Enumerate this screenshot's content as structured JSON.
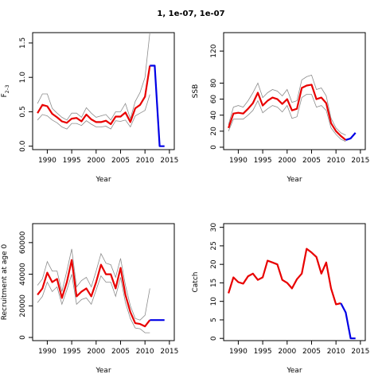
{
  "title": "1, 1e-07, 1e-07",
  "chart_data": [
    {
      "type": "line",
      "id": "f",
      "xlabel": "Year",
      "ylabel_main": "F",
      "ylabel_sub": "2–3",
      "xlim": [
        1987,
        2016
      ],
      "ylim": [
        -0.05,
        1.65
      ],
      "xticks": [
        1990,
        1995,
        2000,
        2005,
        2010,
        2015
      ],
      "yticks": [
        0.0,
        0.5,
        1.0,
        1.5
      ],
      "ytick_labels": [
        "0.0",
        "0.5",
        "1.0",
        "1.5"
      ],
      "x": [
        1988,
        1989,
        1990,
        1991,
        1992,
        1993,
        1994,
        1995,
        1996,
        1997,
        1998,
        1999,
        2000,
        2001,
        2002,
        2003,
        2004,
        2005,
        2006,
        2007,
        2008,
        2009,
        2010,
        2011
      ],
      "series": [
        {
          "role": "upper",
          "values": [
            0.62,
            0.76,
            0.76,
            0.55,
            0.48,
            0.42,
            0.38,
            0.48,
            0.48,
            0.42,
            0.56,
            0.48,
            0.42,
            0.44,
            0.46,
            0.38,
            0.5,
            0.5,
            0.62,
            0.4,
            0.65,
            0.78,
            1.0,
            1.65
          ]
        },
        {
          "role": "estimate",
          "values": [
            0.48,
            0.6,
            0.58,
            0.47,
            0.42,
            0.36,
            0.34,
            0.4,
            0.41,
            0.36,
            0.46,
            0.39,
            0.35,
            0.35,
            0.37,
            0.32,
            0.43,
            0.43,
            0.49,
            0.35,
            0.55,
            0.6,
            0.72,
            1.17
          ]
        },
        {
          "role": "lower",
          "values": [
            0.38,
            0.46,
            0.44,
            0.38,
            0.34,
            0.28,
            0.25,
            0.33,
            0.33,
            0.3,
            0.37,
            0.32,
            0.28,
            0.28,
            0.29,
            0.25,
            0.37,
            0.36,
            0.38,
            0.28,
            0.44,
            0.48,
            0.52,
            0.75
          ]
        },
        {
          "role": "projection",
          "x": [
            2011,
            2012,
            2013,
            2014
          ],
          "values": [
            1.17,
            1.17,
            0.0,
            0.0
          ]
        }
      ]
    },
    {
      "type": "line",
      "id": "ssb",
      "xlabel": "Year",
      "ylabel_main": "SSB",
      "xlim": [
        1987,
        2016
      ],
      "ylim": [
        -3,
        143
      ],
      "xticks": [
        1990,
        1995,
        2000,
        2005,
        2010,
        2015
      ],
      "yticks": [
        0,
        20,
        40,
        60,
        80,
        120
      ],
      "ytick_labels": [
        "0",
        "20",
        "40",
        "60",
        "80",
        "120"
      ],
      "x": [
        1988,
        1989,
        1990,
        1991,
        1992,
        1993,
        1994,
        1995,
        1996,
        1997,
        1998,
        1999,
        2000,
        2001,
        2002,
        2003,
        2004,
        2005,
        2006,
        2007,
        2008,
        2009,
        2010,
        2011,
        2012
      ],
      "series": [
        {
          "role": "upper",
          "values": [
            28,
            50,
            52,
            50,
            58,
            68,
            80,
            62,
            68,
            72,
            70,
            64,
            72,
            56,
            58,
            84,
            88,
            90,
            72,
            74,
            64,
            36,
            24,
            18,
            15
          ]
        },
        {
          "role": "estimate",
          "values": [
            24,
            42,
            43,
            42,
            48,
            55,
            68,
            52,
            58,
            62,
            60,
            54,
            60,
            46,
            48,
            74,
            77,
            78,
            60,
            62,
            55,
            30,
            20,
            14,
            9
          ]
        },
        {
          "role": "lower",
          "values": [
            20,
            35,
            35,
            35,
            40,
            46,
            58,
            43,
            48,
            52,
            50,
            44,
            52,
            36,
            38,
            62,
            66,
            66,
            50,
            52,
            46,
            24,
            16,
            10,
            7
          ]
        },
        {
          "role": "projection",
          "x": [
            2012,
            2013,
            2014
          ],
          "values": [
            9,
            11,
            18
          ]
        }
      ]
    },
    {
      "type": "line",
      "id": "recruitment",
      "xlabel": "Year",
      "ylabel_main": "Recruitment at age 0",
      "xlim": [
        1987,
        2016
      ],
      "ylim": [
        -2000,
        72000
      ],
      "xticks": [
        1990,
        1995,
        2000,
        2005,
        2010,
        2015
      ],
      "yticks": [
        0,
        20000,
        40000,
        60000
      ],
      "ytick_labels": [
        "0",
        "20000",
        "40000",
        "60000"
      ],
      "x": [
        1988,
        1989,
        1990,
        1991,
        1992,
        1993,
        1994,
        1995,
        1996,
        1997,
        1998,
        1999,
        2000,
        2001,
        2002,
        2003,
        2004,
        2005,
        2006,
        2007,
        2008,
        2009,
        2010,
        2011
      ],
      "series": [
        {
          "role": "upper",
          "values": [
            33000,
            37000,
            48000,
            42000,
            42000,
            29000,
            42000,
            56000,
            32000,
            36000,
            38000,
            32000,
            42000,
            53000,
            47000,
            46000,
            38000,
            50000,
            33000,
            20000,
            12000,
            11000,
            14000,
            31000
          ]
        },
        {
          "role": "estimate",
          "values": [
            27000,
            31000,
            41000,
            35000,
            37000,
            25000,
            35000,
            49000,
            26000,
            29000,
            31000,
            26000,
            35000,
            46000,
            40000,
            40000,
            31000,
            44000,
            27000,
            16000,
            9000,
            8500,
            7000,
            11000
          ]
        },
        {
          "role": "lower",
          "values": [
            22000,
            26000,
            35000,
            29000,
            32000,
            21000,
            30000,
            40000,
            21000,
            24000,
            25000,
            21000,
            30000,
            39000,
            35000,
            35000,
            26000,
            38000,
            22000,
            12000,
            6000,
            5500,
            3000,
            3000
          ]
        },
        {
          "role": "projection",
          "x": [
            2011,
            2012,
            2013,
            2014
          ],
          "values": [
            11000,
            11000,
            11000,
            11000
          ]
        }
      ]
    },
    {
      "type": "line",
      "id": "catch",
      "xlabel": "Year",
      "ylabel_main": "Catch",
      "xlim": [
        1987,
        2016
      ],
      "ylim": [
        -0.6,
        31
      ],
      "xticks": [
        1990,
        1995,
        2000,
        2005,
        2010,
        2015
      ],
      "yticks": [
        0,
        5,
        10,
        15,
        20,
        25,
        30
      ],
      "ytick_labels": [
        "0",
        "5",
        "10",
        "15",
        "20",
        "25",
        "30"
      ],
      "x": [
        1988,
        1989,
        1990,
        1991,
        1992,
        1993,
        1994,
        1995,
        1996,
        1997,
        1998,
        1999,
        2000,
        2001,
        2002,
        2003,
        2004,
        2005,
        2006,
        2007,
        2008,
        2009,
        2010,
        2011
      ],
      "series": [
        {
          "role": "estimate",
          "values": [
            12.2,
            16.5,
            15.2,
            14.8,
            16.8,
            17.5,
            15.8,
            16.5,
            21.0,
            20.5,
            20.0,
            15.8,
            15.0,
            13.5,
            16.0,
            17.5,
            24.2,
            23.2,
            22.0,
            17.5,
            20.5,
            13.5,
            9.2,
            9.5
          ]
        },
        {
          "role": "projection",
          "x": [
            2011,
            2012,
            2013,
            2014
          ],
          "values": [
            9.5,
            7.0,
            0.0,
            0.0
          ]
        }
      ]
    }
  ]
}
